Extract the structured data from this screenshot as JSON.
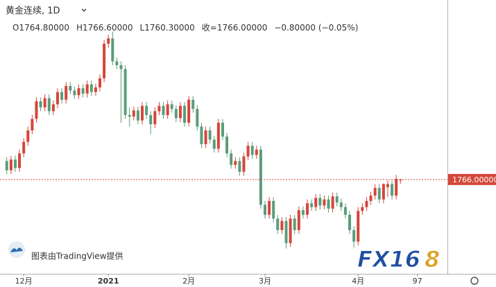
{
  "chart_data": {
    "type": "candlestick",
    "title": "黄金连续, 1D",
    "ohlc_header": [
      {
        "label": "O",
        "value": "1764.80000"
      },
      {
        "label": "H",
        "value": "1766.60000"
      },
      {
        "label": "L",
        "value": "1760.30000"
      },
      {
        "label": "收=",
        "value": "1766.00000"
      },
      {
        "label": "−0.80000 (−0.05%)"
      }
    ],
    "watermark": "图表由TradingView提供",
    "logo": [
      "FX16",
      "8"
    ],
    "up_color": "#d4463a",
    "down_color": "#5b9c7b",
    "xlim": [
      -1.6,
      104.1
    ],
    "ylim": [
      1643,
      2000
    ],
    "xticks": [
      {
        "value": 4,
        "label": "12月"
      },
      {
        "value": 24,
        "label": "2021"
      },
      {
        "value": 43,
        "label": "2月"
      },
      {
        "value": 61,
        "label": "3月"
      },
      {
        "value": 83,
        "label": "4月"
      },
      97
    ],
    "last_price": {
      "value": 1766,
      "label": "1766.00000"
    },
    "open": [
      1790,
      1778,
      1792,
      1781,
      1800,
      1815,
      1830,
      1845,
      1868,
      1860,
      1872,
      1855,
      1864,
      1880,
      1870,
      1888,
      1882,
      1876,
      1885,
      1878,
      1890,
      1880,
      1886,
      1898,
      1943,
      1950,
      1920,
      1915,
      1910,
      1850,
      1848,
      1856,
      1843,
      1862,
      1850,
      1838,
      1855,
      1862,
      1850,
      1864,
      1858,
      1846,
      1862,
      1840,
      1870,
      1858,
      1835,
      1812,
      1830,
      1818,
      1806,
      1840,
      1822,
      1800,
      1785,
      1790,
      1776,
      1796,
      1810,
      1798,
      1805,
      1733,
      1720,
      1738,
      1715,
      1700,
      1712,
      1683,
      1715,
      1700,
      1726,
      1720,
      1735,
      1730,
      1742,
      1732,
      1740,
      1728,
      1744,
      1736,
      1730,
      1720,
      1700,
      1685,
      1725,
      1730,
      1738,
      1745,
      1755,
      1740,
      1756,
      1760,
      1745,
      1764.8
    ],
    "high": [
      1795,
      1797,
      1797,
      1805,
      1820,
      1835,
      1850,
      1873,
      1873,
      1877,
      1877,
      1869,
      1885,
      1885,
      1893,
      1893,
      1887,
      1890,
      1890,
      1895,
      1895,
      1891,
      1903,
      1948,
      1955,
      1959,
      1925,
      1920,
      1915,
      1860,
      1861,
      1861,
      1867,
      1867,
      1855,
      1860,
      1867,
      1867,
      1869,
      1869,
      1863,
      1867,
      1867,
      1875,
      1875,
      1863,
      1840,
      1835,
      1835,
      1823,
      1845,
      1845,
      1827,
      1805,
      1795,
      1795,
      1801,
      1815,
      1815,
      1810,
      1810,
      1738,
      1743,
      1743,
      1720,
      1717,
      1717,
      1720,
      1720,
      1731,
      1731,
      1740,
      1740,
      1747,
      1747,
      1745,
      1745,
      1749,
      1749,
      1741,
      1735,
      1725,
      1705,
      1730,
      1735,
      1743,
      1750,
      1760,
      1760,
      1761,
      1765,
      1765,
      1772,
      1766.6
    ],
    "low": [
      1773,
      1773,
      1776,
      1776,
      1795,
      1810,
      1825,
      1840,
      1855,
      1855,
      1850,
      1850,
      1859,
      1865,
      1865,
      1877,
      1871,
      1871,
      1873,
      1873,
      1875,
      1875,
      1881,
      1893,
      1938,
      1915,
      1910,
      1840,
      1845,
      1835,
      1843,
      1838,
      1838,
      1845,
      1825,
      1833,
      1850,
      1845,
      1845,
      1853,
      1841,
      1841,
      1835,
      1835,
      1853,
      1830,
      1807,
      1807,
      1813,
      1801,
      1801,
      1817,
      1795,
      1780,
      1780,
      1771,
      1771,
      1791,
      1793,
      1793,
      1728,
      1715,
      1715,
      1710,
      1695,
      1695,
      1676,
      1678,
      1695,
      1695,
      1715,
      1715,
      1725,
      1725,
      1727,
      1727,
      1723,
      1723,
      1731,
      1725,
      1715,
      1695,
      1677,
      1680,
      1720,
      1725,
      1733,
      1740,
      1735,
      1735,
      1743,
      1740,
      1740,
      1760.3
    ],
    "close": [
      1778,
      1792,
      1781,
      1800,
      1815,
      1830,
      1845,
      1868,
      1860,
      1872,
      1855,
      1864,
      1880,
      1870,
      1888,
      1882,
      1876,
      1885,
      1878,
      1890,
      1880,
      1886,
      1898,
      1943,
      1950,
      1920,
      1915,
      1910,
      1850,
      1848,
      1856,
      1843,
      1862,
      1850,
      1838,
      1855,
      1862,
      1850,
      1864,
      1858,
      1846,
      1862,
      1840,
      1870,
      1858,
      1835,
      1812,
      1830,
      1818,
      1806,
      1840,
      1822,
      1800,
      1785,
      1790,
      1776,
      1796,
      1810,
      1798,
      1805,
      1733,
      1720,
      1738,
      1715,
      1700,
      1712,
      1683,
      1715,
      1700,
      1726,
      1720,
      1735,
      1730,
      1742,
      1732,
      1740,
      1728,
      1744,
      1736,
      1730,
      1720,
      1700,
      1685,
      1725,
      1730,
      1738,
      1745,
      1755,
      1740,
      1760,
      1760,
      1745,
      1766.8,
      1766
    ]
  }
}
